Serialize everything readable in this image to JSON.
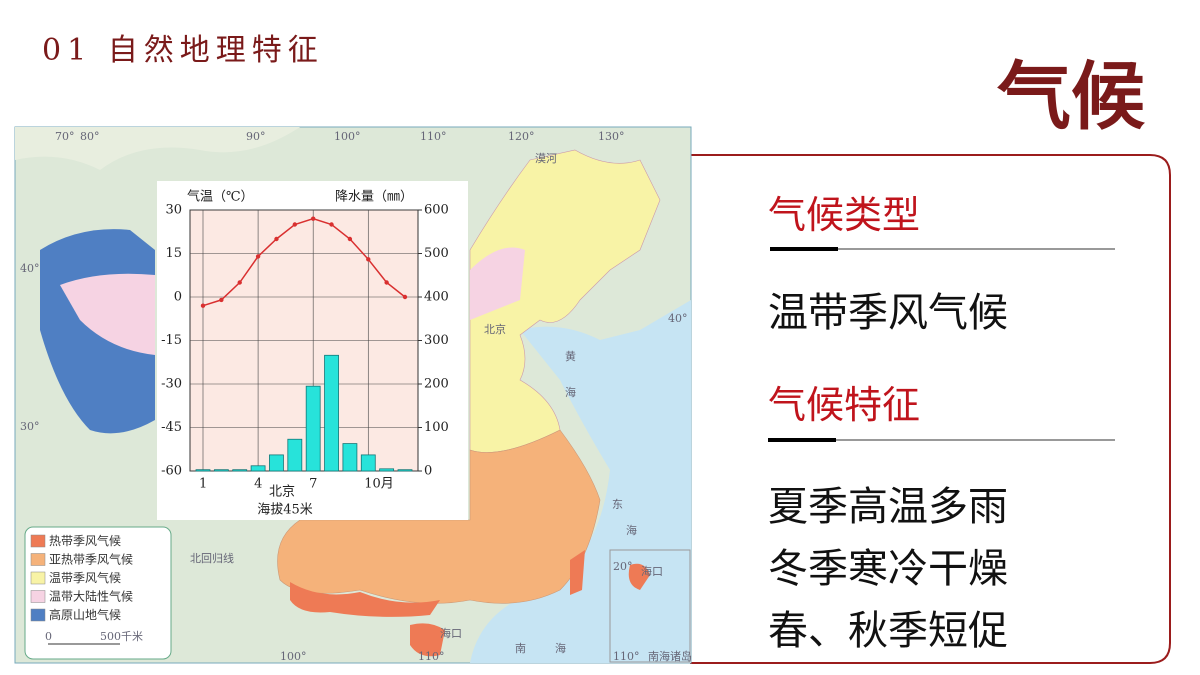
{
  "header": {
    "section": "01 自然地理特征",
    "topic": "气候"
  },
  "map": {
    "labels": [
      "70°",
      "80°",
      "90°",
      "100°",
      "110°",
      "120°",
      "130°",
      "40°",
      "30°",
      "40°",
      "漠河",
      "北京",
      "黄",
      "海",
      "东",
      "海",
      "南",
      "海",
      "北回归线",
      "海口",
      "100°",
      "110°",
      "20°",
      "海口",
      "110°",
      "南海诸岛"
    ],
    "legend": [
      {
        "name": "热带季风气候",
        "color": "#ee7a55"
      },
      {
        "name": "亚热带季风气候",
        "color": "#f5b27a"
      },
      {
        "name": "温带季风气候",
        "color": "#f8f3a6"
      },
      {
        "name": "温带大陆性气候",
        "color": "#f6d3e3"
      },
      {
        "name": "高原山地气候",
        "color": "#4f7fc3"
      }
    ],
    "scale": [
      "0",
      "500千米"
    ]
  },
  "chart_data": {
    "type": "combo",
    "y_label": "气温（℃）",
    "y2_label": "降水量（㎜）",
    "station": "北京",
    "elevation": "海拔45米",
    "categories": [
      "1",
      null,
      null,
      "4",
      null,
      null,
      "7",
      null,
      null,
      "10月",
      null,
      null
    ],
    "series": [
      {
        "name": "气温",
        "type": "line",
        "color": "#d93030",
        "values": [
          -3,
          -1,
          5,
          14,
          20,
          25,
          27,
          25,
          20,
          13,
          5,
          0
        ]
      },
      {
        "name": "降水量",
        "type": "bar",
        "axis": "y2",
        "color": "#27e3da",
        "values": [
          3,
          3,
          3,
          12,
          37,
          73,
          195,
          266,
          63,
          37,
          5,
          3
        ]
      }
    ],
    "ylim": [
      -60,
      30
    ],
    "yticks": [
      -60,
      -45,
      -30,
      -15,
      0,
      15,
      30
    ],
    "y2lim": [
      0,
      600
    ],
    "y2ticks": [
      0,
      100,
      200,
      300,
      400,
      500,
      600
    ],
    "grid": true
  },
  "panel": {
    "type_heading": "气候类型",
    "type": "温带季风气候",
    "features_heading": "气候特征",
    "features": [
      "夏季高温多雨",
      "冬季寒冷干燥",
      "春、秋季短促"
    ]
  }
}
